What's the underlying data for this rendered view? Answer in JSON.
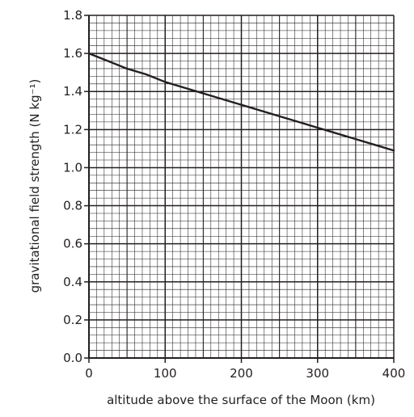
{
  "chart_data": {
    "type": "line",
    "title": "",
    "xlabel": "altitude above the surface of the Moon (km)",
    "ylabel": "gravitational field strength (N kg⁻¹)",
    "xlim": [
      0,
      400
    ],
    "ylim": [
      0.0,
      1.8
    ],
    "xticks": [
      0,
      100,
      200,
      300,
      400
    ],
    "xtick_labels": [
      "0",
      "100",
      "200",
      "300",
      "400"
    ],
    "yticks": [
      0.0,
      0.2,
      0.4,
      0.6,
      0.8,
      1.0,
      1.2,
      1.4,
      1.6,
      1.8
    ],
    "ytick_labels": [
      "0.0",
      "0.2",
      "0.4",
      "0.6",
      "0.8",
      "1.0",
      "1.2",
      "1.4",
      "1.6",
      "1.8"
    ],
    "grid": true,
    "series": [
      {
        "x": [
          0,
          25,
          50,
          75,
          100,
          125,
          150,
          175,
          200,
          225,
          250,
          275,
          300,
          325,
          350,
          375,
          400
        ],
        "y": [
          1.6,
          1.56,
          1.52,
          1.49,
          1.45,
          1.42,
          1.39,
          1.36,
          1.33,
          1.3,
          1.27,
          1.24,
          1.21,
          1.18,
          1.15,
          1.12,
          1.09
        ]
      }
    ],
    "colors": {
      "line": "#231f20",
      "grid": "#231f20",
      "text": "#231f20"
    }
  }
}
